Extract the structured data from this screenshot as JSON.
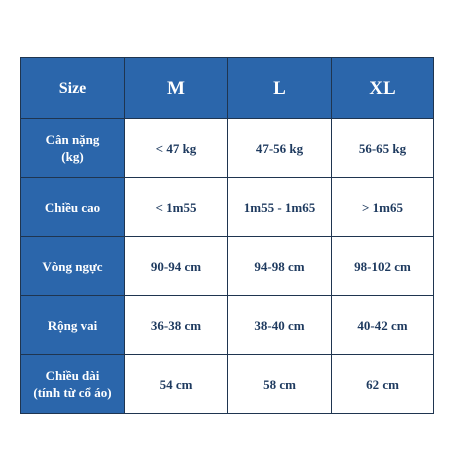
{
  "table": {
    "header": {
      "label": "Size",
      "columns": [
        "M",
        "L",
        "XL"
      ]
    },
    "rows": [
      {
        "label_lines": [
          "Cân nặng",
          "(kg)"
        ],
        "values": [
          "< 47 kg",
          "47-56 kg",
          "56-65 kg"
        ]
      },
      {
        "label_lines": [
          "Chiều cao"
        ],
        "values": [
          "< 1m55",
          "1m55 - 1m65",
          "> 1m65"
        ]
      },
      {
        "label_lines": [
          "Vòng ngực"
        ],
        "values": [
          "90-94 cm",
          "94-98 cm",
          "98-102 cm"
        ]
      },
      {
        "label_lines": [
          "Rộng vai"
        ],
        "values": [
          "36-38 cm",
          "38-40 cm",
          "40-42 cm"
        ]
      },
      {
        "label_lines": [
          "Chiều dài",
          "(tính từ cổ áo)"
        ],
        "values": [
          "54 cm",
          "58 cm",
          "62 cm"
        ]
      }
    ]
  },
  "colors": {
    "header_blue": "#2b66ab",
    "value_text": "#1e3a5f",
    "border": "#1f3550"
  }
}
